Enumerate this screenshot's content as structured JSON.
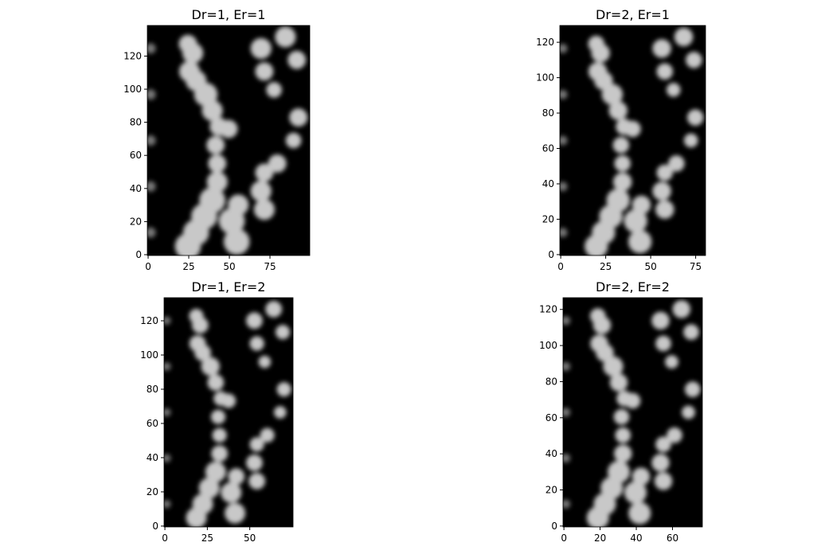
{
  "chart_data": [
    {
      "type": "image",
      "title": "Dr=1, Er=1",
      "xlim": [
        -0.5,
        99.5
      ],
      "ylim": [
        -0.5,
        138.5
      ],
      "xticks": [
        0,
        25,
        50,
        75
      ],
      "yticks": [
        0,
        20,
        40,
        60,
        80,
        100,
        120
      ]
    },
    {
      "type": "image",
      "title": "Dr=2, Er=1",
      "xlim": [
        -0.5,
        80.5
      ],
      "ylim": [
        -0.5,
        129.5
      ],
      "xticks": [
        0,
        25,
        50,
        75
      ],
      "yticks": [
        0,
        20,
        40,
        60,
        80,
        100,
        120
      ]
    },
    {
      "type": "image",
      "title": "Dr=1, Er=2",
      "xlim": [
        -0.5,
        75.5
      ],
      "ylim": [
        -0.5,
        133.5
      ],
      "xticks": [
        0,
        25,
        50
      ],
      "yticks": [
        0,
        20,
        40,
        60,
        80,
        100,
        120
      ]
    },
    {
      "type": "image",
      "title": "Dr=2, Er=2",
      "xlim": [
        -0.5,
        76.5
      ],
      "ylim": [
        -0.5,
        126.5
      ],
      "xticks": [
        0,
        20,
        40,
        60
      ],
      "yticks": [
        0,
        20,
        40,
        60,
        80,
        100,
        120
      ]
    }
  ]
}
